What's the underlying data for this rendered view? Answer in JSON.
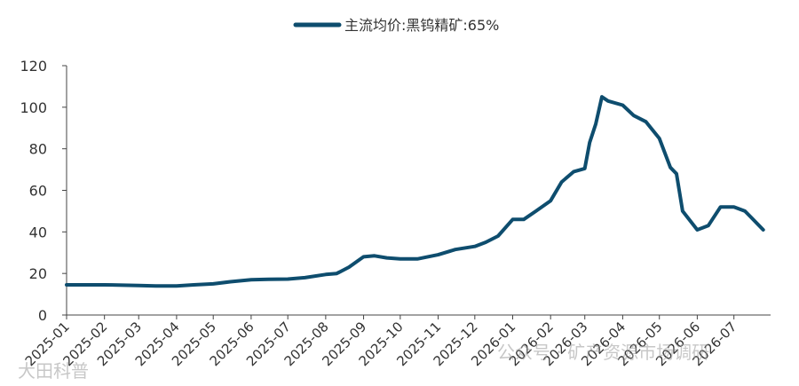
{
  "chart_data": {
    "type": "line",
    "title": "",
    "xlabel": "",
    "ylabel": "",
    "ylim": [
      0,
      120
    ],
    "yticks": [
      0,
      20,
      40,
      60,
      80,
      100,
      120
    ],
    "x_tick_labels": [
      "2025-01",
      "2025-02",
      "2025-03",
      "2025-04",
      "2025-05",
      "2025-06",
      "2025-07",
      "2025-08",
      "2025-09",
      "2025-10",
      "2025-11",
      "2025-12",
      "2026-01",
      "2026-02",
      "2026-03",
      "2026-04",
      "2026-05",
      "2026-06",
      "2026-07"
    ],
    "grid": false,
    "legend_position": "top-center",
    "series": [
      {
        "name": "主流均价:黑钨精矿:65%",
        "color": "#0e4d6e",
        "x": [
          "2025-01-01",
          "2025-02-01",
          "2025-03-01",
          "2025-03-15",
          "2025-04-01",
          "2025-04-15",
          "2025-05-01",
          "2025-05-15",
          "2025-06-01",
          "2025-06-15",
          "2025-07-01",
          "2025-07-15",
          "2025-08-01",
          "2025-08-10",
          "2025-08-20",
          "2025-09-01",
          "2025-09-10",
          "2025-09-20",
          "2025-10-01",
          "2025-10-15",
          "2025-11-01",
          "2025-11-15",
          "2025-12-01",
          "2025-12-10",
          "2025-12-20",
          "2026-01-01",
          "2026-01-10",
          "2026-01-20",
          "2026-02-01",
          "2026-02-10",
          "2026-02-20",
          "2026-03-01",
          "2026-03-05",
          "2026-03-10",
          "2026-03-15",
          "2026-03-20",
          "2026-04-01",
          "2026-04-10",
          "2026-04-20",
          "2026-05-01",
          "2026-05-10",
          "2026-05-15",
          "2026-05-20",
          "2026-06-01",
          "2026-06-10",
          "2026-06-20",
          "2026-07-01",
          "2026-07-10",
          "2026-07-15",
          "2026-07-25"
        ],
        "values": [
          14.5,
          14.5,
          14.2,
          14,
          14,
          14.5,
          15,
          16,
          17,
          17.2,
          17.3,
          18,
          19.5,
          20,
          23,
          28,
          28.5,
          27.5,
          27,
          27,
          29,
          31.5,
          33,
          35,
          38,
          46,
          46,
          50,
          55,
          64,
          69,
          70.5,
          83,
          92,
          105,
          103,
          101,
          96,
          93,
          85,
          71,
          68,
          50,
          41,
          43,
          52,
          52,
          50,
          47,
          41
        ]
      }
    ]
  },
  "watermarks": {
    "bottom_left": "大田科普",
    "bottom_right": "公众号 · 矿产资源市场调研"
  }
}
